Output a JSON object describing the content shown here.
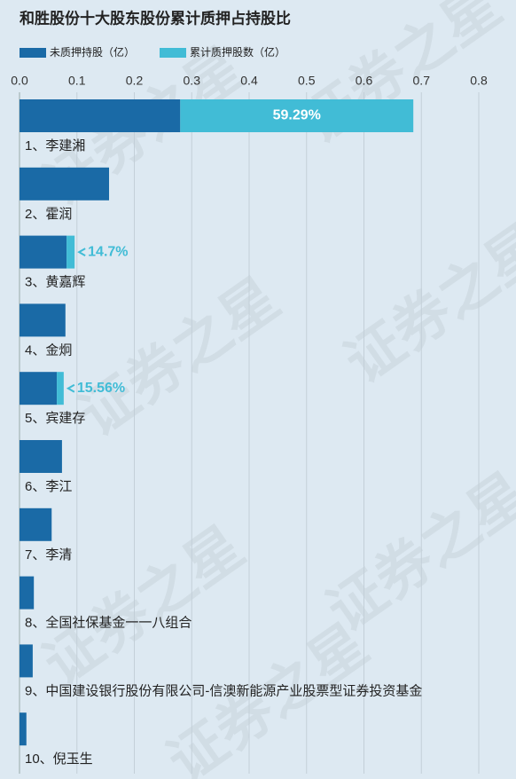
{
  "chart_data": {
    "type": "bar",
    "orientation": "horizontal",
    "stacked": true,
    "title": "和胜股份十大股东股份累计质押占持股比",
    "watermark": "证券之星",
    "categories": [
      "1、李建湘",
      "2、霍润",
      "3、黄嘉辉",
      "4、金炯",
      "5、宾建存",
      "6、李江",
      "7、李清",
      "8、全国社保基金一一八组合",
      "9、中国建设银行股份有限公司-信澳新能源产业股票型证券投资基金",
      "10、倪玉生"
    ],
    "series": [
      {
        "name": "未质押持股（亿）",
        "color": "#1a6aa6",
        "values": [
          0.28,
          0.156,
          0.082,
          0.08,
          0.065,
          0.074,
          0.056,
          0.025,
          0.023,
          0.012
        ]
      },
      {
        "name": "累计质押股数（亿）",
        "color": "#41bcd6",
        "values": [
          0.406,
          null,
          0.014,
          null,
          0.012,
          null,
          null,
          null,
          null,
          null
        ]
      }
    ],
    "ratio_labels": [
      "59.29%",
      null,
      "14.7%",
      null,
      "15.56%",
      null,
      null,
      null,
      null,
      null
    ],
    "xlim": [
      0,
      0.8
    ],
    "xticks": [
      {
        "value": 0,
        "label": "0.0"
      },
      0.1,
      0.2,
      0.3,
      0.4,
      0.5,
      0.6,
      0.7,
      0.8
    ],
    "grid": true
  }
}
